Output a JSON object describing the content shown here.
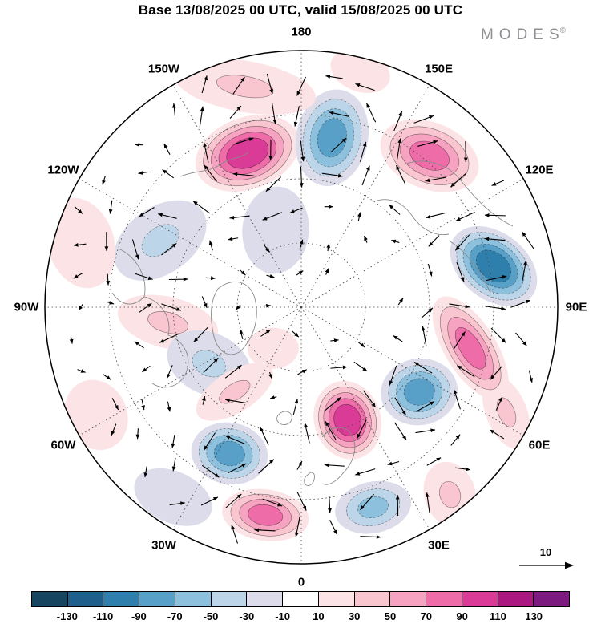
{
  "header": {
    "title": "Base 13/08/2025 00 UTC, valid 15/08/2025 00 UTC",
    "brand": "MODES",
    "brand_mark": "©"
  },
  "chart_data": {
    "type": "heatmap",
    "projection": "north_polar_stereographic",
    "title": "Base 13/08/2025 00 UTC, valid 15/08/2025 00 UTC",
    "description": "Polar-cap anomaly field (shaded) with wind vector arrows",
    "meridian_labels_clockwise_from_top": [
      "180",
      "150E",
      "120E",
      "90E",
      "60E",
      "30E",
      "0",
      "30W",
      "60W",
      "90W",
      "120W",
      "150W"
    ],
    "meridian_step_deg": 30,
    "latitude_circles_fraction_radius": [
      0.25,
      0.5,
      0.75
    ],
    "reference_arrow": {
      "label": "10"
    },
    "colorbar": {
      "ticks": [
        -130,
        -110,
        -90,
        -70,
        -50,
        -30,
        -10,
        10,
        30,
        50,
        70,
        90,
        110,
        130
      ],
      "colors": [
        "#15455f",
        "#1e5f8c",
        "#2f7fad",
        "#58a0c8",
        "#8dc0dc",
        "#bcd5e8",
        "#dcdcea",
        "#ffffff",
        "#fce4e6",
        "#f9c6d0",
        "#f5a3c0",
        "#ee6ca8",
        "#da3b97",
        "#ab1880",
        "#7d1a80"
      ]
    },
    "anomaly_features": [
      {
        "x": -0.21,
        "y": -0.6,
        "sign": 1,
        "strength": 5,
        "rx": 0.21,
        "ry": 0.14,
        "rot": -20
      },
      {
        "x": 0.12,
        "y": -0.66,
        "sign": -1,
        "strength": 4,
        "rx": 0.14,
        "ry": 0.19,
        "rot": 12
      },
      {
        "x": 0.5,
        "y": -0.59,
        "sign": 1,
        "strength": 4,
        "rx": 0.2,
        "ry": 0.13,
        "rot": 22
      },
      {
        "x": 0.75,
        "y": -0.16,
        "sign": -1,
        "strength": 5,
        "rx": 0.19,
        "ry": 0.13,
        "rot": 38
      },
      {
        "x": 0.66,
        "y": 0.16,
        "sign": 1,
        "strength": 4,
        "rx": 0.23,
        "ry": 0.1,
        "rot": 58
      },
      {
        "x": 0.8,
        "y": 0.41,
        "sign": 1,
        "strength": 2,
        "rx": 0.15,
        "ry": 0.08,
        "rot": 68
      },
      {
        "x": 0.46,
        "y": 0.33,
        "sign": -1,
        "strength": 4,
        "rx": 0.15,
        "ry": 0.13,
        "rot": -8
      },
      {
        "x": 0.18,
        "y": 0.44,
        "sign": 1,
        "strength": 5,
        "rx": 0.13,
        "ry": 0.155,
        "rot": -18
      },
      {
        "x": -0.28,
        "y": 0.57,
        "sign": -1,
        "strength": 4,
        "rx": 0.15,
        "ry": 0.12,
        "rot": 10
      },
      {
        "x": -0.14,
        "y": 0.81,
        "sign": 1,
        "strength": 4,
        "rx": 0.17,
        "ry": 0.1,
        "rot": 8
      },
      {
        "x": 0.28,
        "y": 0.78,
        "sign": -1,
        "strength": 3,
        "rx": 0.15,
        "ry": 0.1,
        "rot": -12
      },
      {
        "x": -0.55,
        "y": -0.26,
        "sign": -1,
        "strength": 2,
        "rx": 0.2,
        "ry": 0.13,
        "rot": -35
      },
      {
        "x": -0.52,
        "y": 0.06,
        "sign": 1,
        "strength": 2,
        "rx": 0.2,
        "ry": 0.1,
        "rot": 14
      },
      {
        "x": -0.36,
        "y": 0.22,
        "sign": -1,
        "strength": 2,
        "rx": 0.17,
        "ry": 0.12,
        "rot": 24
      },
      {
        "x": -0.26,
        "y": 0.33,
        "sign": 1,
        "strength": 2,
        "rx": 0.17,
        "ry": 0.08,
        "rot": -32
      },
      {
        "x": -0.22,
        "y": -0.86,
        "sign": 1,
        "strength": 2,
        "rx": 0.28,
        "ry": 0.1,
        "rot": 10
      },
      {
        "x": -0.86,
        "y": -0.25,
        "sign": 1,
        "strength": 1,
        "rx": 0.13,
        "ry": 0.18,
        "rot": -18
      },
      {
        "x": -0.5,
        "y": 0.74,
        "sign": -1,
        "strength": 1,
        "rx": 0.16,
        "ry": 0.1,
        "rot": 24
      },
      {
        "x": 0.23,
        "y": -0.92,
        "sign": 1,
        "strength": 1,
        "rx": 0.12,
        "ry": 0.08,
        "rot": 20
      },
      {
        "x": 0.58,
        "y": 0.73,
        "sign": 1,
        "strength": 2,
        "rx": 0.1,
        "ry": 0.13,
        "rot": -18
      },
      {
        "x": -0.1,
        "y": -0.3,
        "sign": -1,
        "strength": 1,
        "rx": 0.13,
        "ry": 0.17,
        "rot": 5
      },
      {
        "x": -0.8,
        "y": 0.42,
        "sign": 1,
        "strength": 1,
        "rx": 0.12,
        "ry": 0.14,
        "rot": -25
      },
      {
        "x": -0.11,
        "y": 0.16,
        "sign": 1,
        "strength": 1,
        "rx": 0.1,
        "ry": 0.08,
        "rot": 0
      }
    ]
  }
}
